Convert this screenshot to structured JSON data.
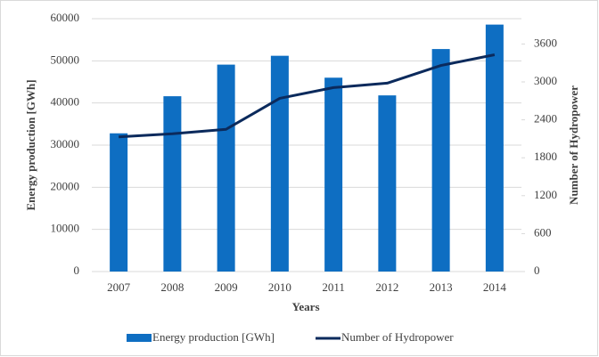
{
  "chart_data": {
    "type": "bar_line",
    "categories": [
      "2007",
      "2008",
      "2009",
      "2010",
      "2011",
      "2012",
      "2013",
      "2014"
    ],
    "x_label": "Years",
    "y_label": "Energy production [GWh]",
    "y2_label": "Number of Hydropower",
    "ylim": [
      0,
      60000
    ],
    "yticks": [
      0,
      10000,
      20000,
      30000,
      40000,
      50000,
      60000
    ],
    "y2lim": [
      0,
      4000
    ],
    "y2ticks": [
      0,
      600,
      1200,
      1800,
      2400,
      3000,
      3600
    ],
    "grid": true,
    "series": [
      {
        "name": "Energy production [GWh]",
        "type": "bar",
        "color": "#0e6ec2",
        "values": [
          32800,
          41600,
          49100,
          51200,
          46000,
          41800,
          52800,
          58600
        ]
      },
      {
        "name": "Number of Hydropower",
        "type": "line",
        "axis": "y2",
        "color": "#0b2a5c",
        "values": [
          2130,
          2180,
          2250,
          2740,
          2910,
          2980,
          3260,
          3430
        ]
      }
    ]
  }
}
